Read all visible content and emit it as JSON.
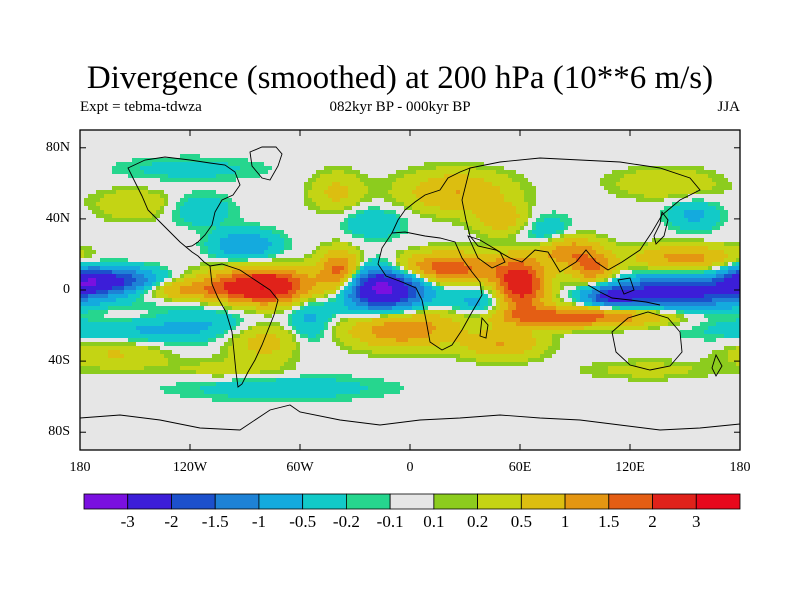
{
  "title": "Divergence (smoothed) at 200 hPa (10**6 m/s)",
  "subtitle_left": "Expt = tebma-tdwza",
  "subtitle_center": "082kyr BP - 000kyr BP",
  "subtitle_right": "JJA",
  "y_ticks": [
    "80N",
    "40N",
    "0",
    "40S",
    "80S"
  ],
  "x_ticks": [
    "180",
    "120W",
    "60W",
    "0",
    "60E",
    "120E",
    "180"
  ],
  "colorbar": {
    "labels": [
      "-3",
      "-2",
      "-1.5",
      "-1",
      "-0.5",
      "-0.2",
      "-0.1",
      "0.1",
      "0.2",
      "0.5",
      "1",
      "1.5",
      "2",
      "3"
    ],
    "colors": [
      "#7a10e0",
      "#3c1ed8",
      "#1c50cc",
      "#1e82d6",
      "#14aade",
      "#12cac8",
      "#26d68e",
      "#e6e6e6",
      "#8ccc1e",
      "#c4d414",
      "#dcbe10",
      "#e49612",
      "#e45e14",
      "#e0221a",
      "#e8081c"
    ]
  },
  "map_data": {
    "type": "filled-contour",
    "variable": "Divergence (smoothed)",
    "level": "200 hPa",
    "units": "10**6 m/s",
    "season": "JJA",
    "lon_range": [
      -180,
      180
    ],
    "lat_range": [
      -90,
      90
    ],
    "blobs": [
      {
        "lon": -15,
        "lat": 2,
        "rlon": 16,
        "rlat": 9,
        "value": -3.5
      },
      {
        "lon": -160,
        "lat": 5,
        "rlon": 16,
        "rlat": 5,
        "value": -2
      },
      {
        "lon": -178,
        "lat": 5,
        "rlon": 10,
        "rlat": 6,
        "value": -1.5
      },
      {
        "lon": 145,
        "lat": -1,
        "rlon": 24,
        "rlat": 6,
        "value": -2.5
      },
      {
        "lon": 110,
        "lat": -4,
        "rlon": 10,
        "rlat": 4,
        "value": -1.8
      },
      {
        "lon": -140,
        "lat": -18,
        "rlon": 40,
        "rlat": 8,
        "value": -1
      },
      {
        "lon": -90,
        "lat": 25,
        "rlon": 12,
        "rlat": 6,
        "value": -1
      },
      {
        "lon": -55,
        "lat": -15,
        "rlon": 8,
        "rlat": 12,
        "value": -0.6
      },
      {
        "lon": 40,
        "lat": -8,
        "rlon": 12,
        "rlat": 8,
        "value": -0.8
      },
      {
        "lon": 75,
        "lat": 30,
        "rlon": 10,
        "rlat": 8,
        "value": -0.6
      },
      {
        "lon": -20,
        "lat": 38,
        "rlon": 12,
        "rlat": 6,
        "value": -0.5
      },
      {
        "lon": -115,
        "lat": 45,
        "rlon": 12,
        "rlat": 6,
        "value": -0.5
      },
      {
        "lon": 155,
        "lat": 42,
        "rlon": 10,
        "rlat": 6,
        "value": -0.6
      },
      {
        "lon": -70,
        "lat": -55,
        "rlon": 40,
        "rlat": 5,
        "value": -0.4
      },
      {
        "lon": -80,
        "lat": 2,
        "rlon": 20,
        "rlat": 7,
        "value": 3
      },
      {
        "lon": -125,
        "lat": 0,
        "rlon": 18,
        "rlat": 4,
        "value": 1
      },
      {
        "lon": 15,
        "lat": 12,
        "rlon": 25,
        "rlat": 6,
        "value": 2
      },
      {
        "lon": -38,
        "lat": 10,
        "rlon": 8,
        "rlat": 8,
        "value": 2
      },
      {
        "lon": 60,
        "lat": 2,
        "rlon": 10,
        "rlat": 10,
        "value": 2.5
      },
      {
        "lon": 85,
        "lat": 22,
        "rlon": 12,
        "rlat": 6,
        "value": 1.5
      },
      {
        "lon": 100,
        "lat": 12,
        "rlon": 8,
        "rlat": 6,
        "value": 1.5
      },
      {
        "lon": 150,
        "lat": 18,
        "rlon": 20,
        "rlat": 5,
        "value": 1.2
      },
      {
        "lon": 90,
        "lat": -15,
        "rlon": 35,
        "rlat": 4,
        "value": 1.8
      },
      {
        "lon": -5,
        "lat": -22,
        "rlon": 20,
        "rlat": 7,
        "value": 1.5
      },
      {
        "lon": 50,
        "lat": -30,
        "rlon": 15,
        "rlat": 6,
        "value": 1
      },
      {
        "lon": -80,
        "lat": -28,
        "rlon": 15,
        "rlat": 8,
        "value": 0.8
      },
      {
        "lon": -160,
        "lat": -35,
        "rlon": 20,
        "rlat": 6,
        "value": 0.6
      },
      {
        "lon": -150,
        "lat": -15,
        "rlon": 25,
        "rlat": 5,
        "value": 0.8
      },
      {
        "lon": 25,
        "lat": 55,
        "rlon": 20,
        "rlat": 8,
        "value": 1
      },
      {
        "lon": 50,
        "lat": 40,
        "rlon": 10,
        "rlat": 6,
        "value": 0.8
      },
      {
        "lon": -40,
        "lat": 55,
        "rlon": 10,
        "rlat": 8,
        "value": 0.6
      },
      {
        "lon": -150,
        "lat": 48,
        "rlon": 15,
        "rlat": 6,
        "value": 0.5
      },
      {
        "lon": 140,
        "lat": 60,
        "rlon": 20,
        "rlat": 6,
        "value": 0.5
      },
      {
        "lon": -100,
        "lat": -45,
        "rlon": 25,
        "rlat": 4,
        "value": 0.3
      },
      {
        "lon": 130,
        "lat": -45,
        "rlon": 25,
        "rlat": 4,
        "value": 0.3
      },
      {
        "lon": -120,
        "lat": 68,
        "rlon": 30,
        "rlat": 5,
        "value": -0.3
      }
    ]
  }
}
